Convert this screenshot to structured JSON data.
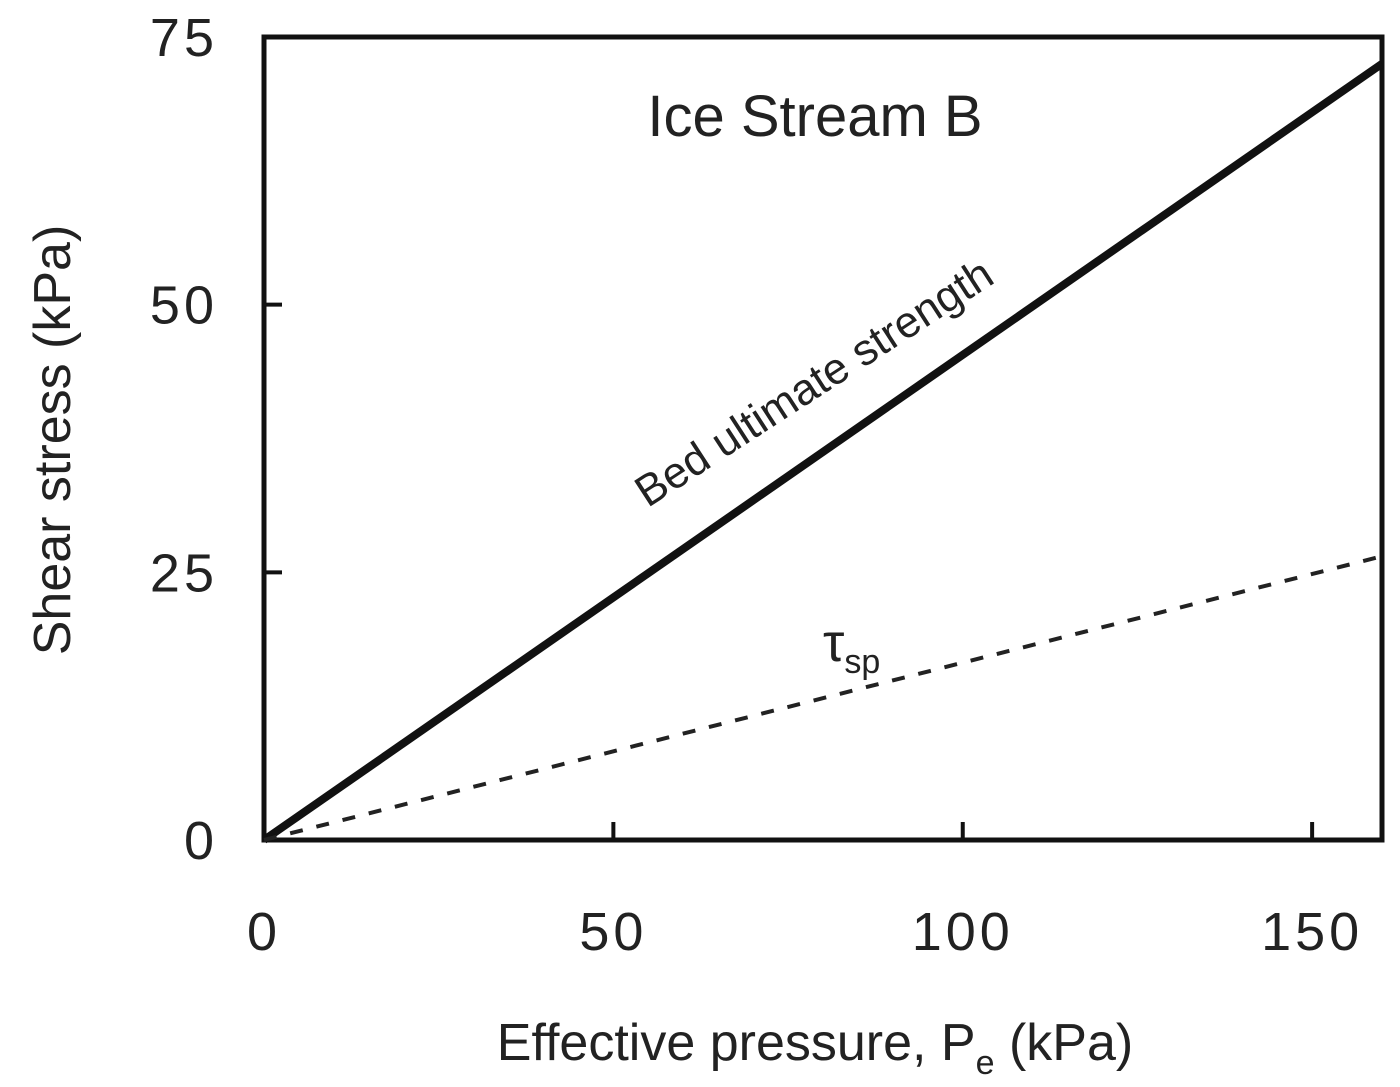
{
  "chart_data": {
    "type": "line",
    "title": "Ice Stream B",
    "xlabel": {
      "main": "Effective pressure, P",
      "subscript": "e",
      "unit": " (kPa)"
    },
    "ylabel": "Shear stress (kPa)",
    "xlim": [
      0,
      160
    ],
    "ylim": [
      0,
      75
    ],
    "xticks": [
      "0",
      "50",
      "100",
      "150"
    ],
    "yticks": [
      "0",
      "25",
      "50",
      "75"
    ],
    "xtick_values": [
      0,
      50,
      100,
      150
    ],
    "ytick_values": [
      0,
      25,
      50,
      75
    ],
    "grid": false,
    "series": [
      {
        "name": "Bed ultimate strength",
        "style": "solid",
        "color": "#111111",
        "x": [
          0,
          160
        ],
        "y": [
          0,
          72.5
        ]
      },
      {
        "name": "τsp",
        "style": "dashed",
        "color": "#222222",
        "x": [
          0,
          160
        ],
        "y": [
          0,
          26.5
        ]
      }
    ],
    "annotations": {
      "bed_label": "Bed ultimate strength",
      "tau_symbol": "τ",
      "tau_subscript": "sp"
    }
  }
}
